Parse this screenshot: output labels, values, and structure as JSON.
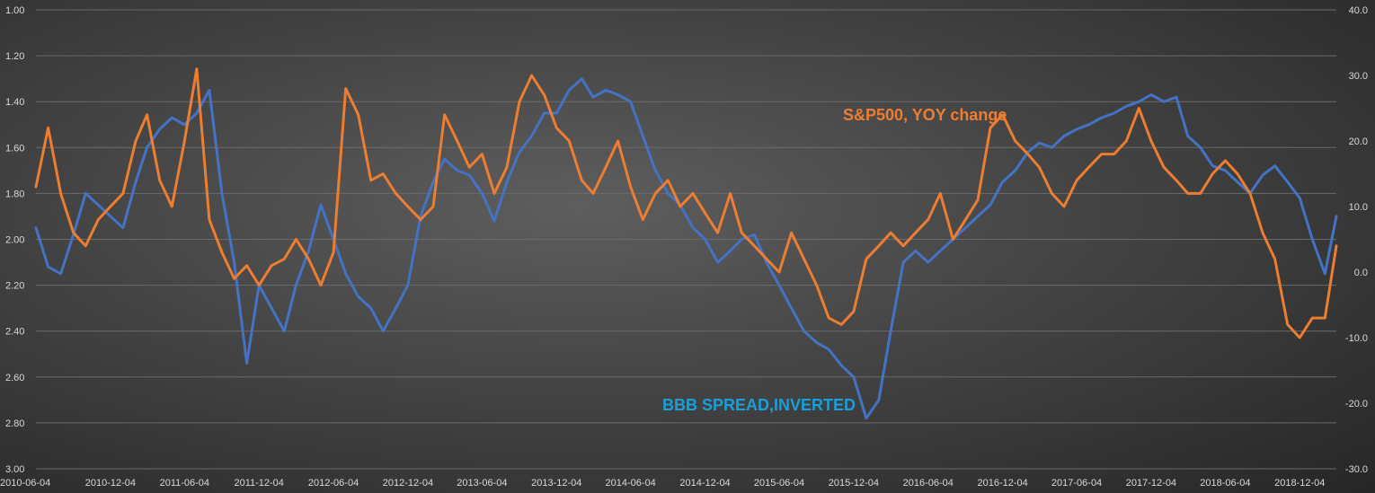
{
  "chart_data": {
    "type": "line",
    "title": "",
    "x_dates": [
      "2010-06-04",
      "2010-12-04",
      "2011-06-04",
      "2011-12-04",
      "2012-06-04",
      "2012-12-04",
      "2013-06-04",
      "2013-12-04",
      "2014-06-04",
      "2014-12-04",
      "2015-06-04",
      "2015-12-04",
      "2016-06-04",
      "2016-12-04",
      "2017-06-04",
      "2017-12-04",
      "2018-06-04",
      "2018-12-04"
    ],
    "x_tick_labels": [
      "2010-06-04",
      "2010-12-04",
      "2011-06-04",
      "2011-12-04",
      "2012-06-04",
      "2012-12-04",
      "2013-06-04",
      "2013-12-04",
      "2014-06-04",
      "2014-12-04",
      "2015-06-04",
      "2015-12-04",
      "2016-06-04",
      "2016-12-04",
      "2017-06-04",
      "2017-12-04",
      "2018-06-04",
      "2018-12-04"
    ],
    "x_range": [
      "2010-06-04",
      "2019-03-04"
    ],
    "y_left": {
      "ticks": [
        "1.00",
        "1.20",
        "1.40",
        "1.60",
        "1.80",
        "2.00",
        "2.20",
        "2.40",
        "2.60",
        "2.80",
        "3.00"
      ],
      "range": [
        1.0,
        3.0
      ],
      "inverted": true
    },
    "y_right": {
      "ticks": [
        "40.0",
        "30.0",
        "20.0",
        "10.0",
        "0.0",
        "-10.0",
        "-20.0",
        "-30.0"
      ],
      "range": [
        -30,
        40
      ]
    },
    "grid": true,
    "series": [
      {
        "name": "BBB SPREAD,INVERTED",
        "axis": "left",
        "color": "#4472c4",
        "x": [
          "2010-06-04",
          "2010-07-04",
          "2010-08-04",
          "2010-09-04",
          "2010-10-04",
          "2010-11-04",
          "2010-12-04",
          "2011-01-04",
          "2011-02-04",
          "2011-03-04",
          "2011-04-04",
          "2011-05-04",
          "2011-06-04",
          "2011-07-04",
          "2011-08-04",
          "2011-09-04",
          "2011-10-04",
          "2011-11-04",
          "2011-12-04",
          "2012-01-04",
          "2012-02-04",
          "2012-03-04",
          "2012-04-04",
          "2012-05-04",
          "2012-06-04",
          "2012-07-04",
          "2012-08-04",
          "2012-09-04",
          "2012-10-04",
          "2012-11-04",
          "2012-12-04",
          "2013-01-04",
          "2013-02-04",
          "2013-03-04",
          "2013-04-04",
          "2013-05-04",
          "2013-06-04",
          "2013-07-04",
          "2013-08-04",
          "2013-09-04",
          "2013-10-04",
          "2013-11-04",
          "2013-12-04",
          "2014-01-04",
          "2014-02-04",
          "2014-03-04",
          "2014-04-04",
          "2014-05-04",
          "2014-06-04",
          "2014-07-04",
          "2014-08-04",
          "2014-09-04",
          "2014-10-04",
          "2014-11-04",
          "2014-12-04",
          "2015-01-04",
          "2015-02-04",
          "2015-03-04",
          "2015-04-04",
          "2015-05-04",
          "2015-06-04",
          "2015-07-04",
          "2015-08-04",
          "2015-09-04",
          "2015-10-04",
          "2015-11-04",
          "2015-12-04",
          "2016-01-04",
          "2016-02-04",
          "2016-03-04",
          "2016-04-04",
          "2016-05-04",
          "2016-06-04",
          "2016-07-04",
          "2016-08-04",
          "2016-09-04",
          "2016-10-04",
          "2016-11-04",
          "2016-12-04",
          "2017-01-04",
          "2017-02-04",
          "2017-03-04",
          "2017-04-04",
          "2017-05-04",
          "2017-06-04",
          "2017-07-04",
          "2017-08-04",
          "2017-09-04",
          "2017-10-04",
          "2017-11-04",
          "2017-12-04",
          "2018-01-04",
          "2018-02-04",
          "2018-03-04",
          "2018-04-04",
          "2018-05-04",
          "2018-06-04",
          "2018-07-04",
          "2018-08-04",
          "2018-09-04",
          "2018-10-04",
          "2018-11-04",
          "2018-12-04",
          "2019-01-04",
          "2019-02-04",
          "2019-03-04"
        ],
        "values": [
          1.95,
          2.12,
          2.15,
          1.98,
          1.8,
          1.85,
          1.9,
          1.95,
          1.75,
          1.6,
          1.52,
          1.47,
          1.5,
          1.45,
          1.35,
          1.8,
          2.1,
          2.54,
          2.2,
          2.3,
          2.4,
          2.2,
          2.05,
          1.85,
          2.0,
          2.15,
          2.25,
          2.3,
          2.4,
          2.3,
          2.2,
          1.9,
          1.75,
          1.65,
          1.7,
          1.72,
          1.8,
          1.92,
          1.75,
          1.62,
          1.55,
          1.45,
          1.45,
          1.35,
          1.3,
          1.38,
          1.35,
          1.37,
          1.4,
          1.55,
          1.7,
          1.8,
          1.85,
          1.95,
          2.0,
          2.1,
          2.05,
          2.0,
          1.98,
          2.1,
          2.2,
          2.3,
          2.4,
          2.45,
          2.48,
          2.55,
          2.6,
          2.78,
          2.7,
          2.4,
          2.1,
          2.05,
          2.1,
          2.05,
          2.0,
          1.95,
          1.9,
          1.85,
          1.75,
          1.7,
          1.62,
          1.58,
          1.6,
          1.55,
          1.52,
          1.5,
          1.47,
          1.45,
          1.42,
          1.4,
          1.37,
          1.4,
          1.38,
          1.55,
          1.6,
          1.68,
          1.7,
          1.75,
          1.8,
          1.72,
          1.68,
          1.75,
          1.82,
          2.0,
          2.15,
          1.9
        ]
      },
      {
        "name": "S&P500, YOY change",
        "axis": "right",
        "color": "#ed7d31",
        "x": [
          "2010-06-04",
          "2010-07-04",
          "2010-08-04",
          "2010-09-04",
          "2010-10-04",
          "2010-11-04",
          "2010-12-04",
          "2011-01-04",
          "2011-02-04",
          "2011-03-04",
          "2011-04-04",
          "2011-05-04",
          "2011-06-04",
          "2011-07-04",
          "2011-08-04",
          "2011-09-04",
          "2011-10-04",
          "2011-11-04",
          "2011-12-04",
          "2012-01-04",
          "2012-02-04",
          "2012-03-04",
          "2012-04-04",
          "2012-05-04",
          "2012-06-04",
          "2012-07-04",
          "2012-08-04",
          "2012-09-04",
          "2012-10-04",
          "2012-11-04",
          "2012-12-04",
          "2013-01-04",
          "2013-02-04",
          "2013-03-04",
          "2013-04-04",
          "2013-05-04",
          "2013-06-04",
          "2013-07-04",
          "2013-08-04",
          "2013-09-04",
          "2013-10-04",
          "2013-11-04",
          "2013-12-04",
          "2014-01-04",
          "2014-02-04",
          "2014-03-04",
          "2014-04-04",
          "2014-05-04",
          "2014-06-04",
          "2014-07-04",
          "2014-08-04",
          "2014-09-04",
          "2014-10-04",
          "2014-11-04",
          "2014-12-04",
          "2015-01-04",
          "2015-02-04",
          "2015-03-04",
          "2015-04-04",
          "2015-05-04",
          "2015-06-04",
          "2015-07-04",
          "2015-08-04",
          "2015-09-04",
          "2015-10-04",
          "2015-11-04",
          "2015-12-04",
          "2016-01-04",
          "2016-02-04",
          "2016-03-04",
          "2016-04-04",
          "2016-05-04",
          "2016-06-04",
          "2016-07-04",
          "2016-08-04",
          "2016-09-04",
          "2016-10-04",
          "2016-11-04",
          "2016-12-04",
          "2017-01-04",
          "2017-02-04",
          "2017-03-04",
          "2017-04-04",
          "2017-05-04",
          "2017-06-04",
          "2017-07-04",
          "2017-08-04",
          "2017-09-04",
          "2017-10-04",
          "2017-11-04",
          "2017-12-04",
          "2018-01-04",
          "2018-02-04",
          "2018-03-04",
          "2018-04-04",
          "2018-05-04",
          "2018-06-04",
          "2018-07-04",
          "2018-08-04",
          "2018-09-04",
          "2018-10-04",
          "2018-11-04",
          "2018-12-04",
          "2019-01-04",
          "2019-02-04",
          "2019-03-04"
        ],
        "values": [
          13.0,
          22.0,
          12.0,
          6.0,
          4.0,
          8.0,
          10.0,
          12.0,
          20.0,
          24.0,
          14.0,
          10.0,
          20.0,
          31.0,
          8.0,
          3.0,
          -1.0,
          1.0,
          -2.0,
          1.0,
          2.0,
          5.0,
          2.0,
          -2.0,
          3.0,
          28.0,
          24.0,
          14.0,
          15.0,
          12.0,
          10.0,
          8.0,
          10.0,
          24.0,
          20.0,
          16.0,
          18.0,
          12.0,
          16.0,
          26.0,
          30.0,
          27.0,
          22.0,
          20.0,
          14.0,
          12.0,
          16.0,
          20.0,
          13.0,
          8.0,
          12.0,
          14.0,
          10.0,
          12.0,
          9.0,
          6.0,
          12.0,
          6.0,
          4.0,
          2.0,
          0.0,
          6.0,
          2.0,
          -2.0,
          -7.0,
          -8.0,
          -6.0,
          2.0,
          4.0,
          6.0,
          4.0,
          6.0,
          8.0,
          12.0,
          5.0,
          8.0,
          11.0,
          22.0,
          24.0,
          20.0,
          18.0,
          16.0,
          12.0,
          10.0,
          14.0,
          16.0,
          18.0,
          18.0,
          20.0,
          25.0,
          20.0,
          16.0,
          14.0,
          12.0,
          12.0,
          15.0,
          17.0,
          15.0,
          12.0,
          6.0,
          2.0,
          -8.0,
          -10.0,
          -7.0,
          -7.0,
          4.0
        ]
      }
    ],
    "annotations": [
      {
        "text": "S&P500, YOY change",
        "color": "#ed7d31"
      },
      {
        "text": "BBB SPREAD,INVERTED",
        "color": "#1a9fd8"
      }
    ]
  }
}
